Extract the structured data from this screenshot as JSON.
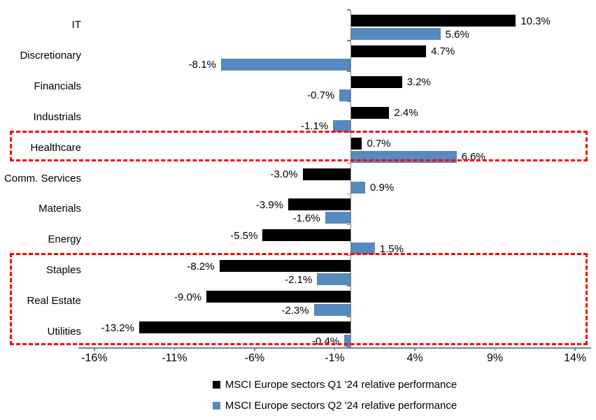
{
  "chart_data": {
    "type": "bar",
    "orientation": "horizontal",
    "title": "",
    "categories": [
      "IT",
      "Discretionary",
      "Financials",
      "Industrials",
      "Healthcare",
      "Comm. Services",
      "Materials",
      "Energy",
      "Staples",
      "Real Estate",
      "Utilities"
    ],
    "series": [
      {
        "name": "MSCI Europe sectors Q1 '24 relative performance",
        "color": "#000000",
        "values": [
          10.3,
          4.7,
          3.2,
          2.4,
          0.7,
          -3.0,
          -3.9,
          -5.5,
          -8.2,
          -9.0,
          -13.2
        ],
        "labels": [
          "10.3%",
          "4.7%",
          "3.2%",
          "2.4%",
          "0.7%",
          "-3.0%",
          "-3.9%",
          "-5.5%",
          "-8.2%",
          "-9.0%",
          "-13.2%"
        ]
      },
      {
        "name": "MSCI Europe sectors Q2 '24 relative performance",
        "color": "#5689be",
        "values": [
          5.6,
          -8.1,
          -0.7,
          -1.1,
          6.6,
          0.9,
          -1.6,
          1.5,
          -2.1,
          -2.3,
          -0.4
        ],
        "labels": [
          "5.6%",
          "-8.1%",
          "-0.7%",
          "-1.1%",
          "6.6%",
          "0.9%",
          "-1.6%",
          "1.5%",
          "-2.1%",
          "-2.3%",
          "-0.4%"
        ]
      }
    ],
    "x_axis": {
      "range": [
        -17,
        15
      ],
      "ticks": [
        {
          "value": -16,
          "label": "-16%"
        },
        {
          "value": -11,
          "label": "-11%"
        },
        {
          "value": -6,
          "label": "-6%"
        },
        {
          "value": -1,
          "label": "-1%"
        },
        {
          "value": 4,
          "label": "4%"
        },
        {
          "value": 9,
          "label": "9%"
        },
        {
          "value": 14,
          "label": "14%"
        }
      ],
      "color": "#808080"
    },
    "grid": false,
    "legend_position": "bottom",
    "highlights": [
      {
        "categories": [
          "Healthcare"
        ],
        "style": "dashed",
        "color": "#fa0000"
      },
      {
        "categories": [
          "Staples",
          "Real Estate",
          "Utilities"
        ],
        "style": "dashed",
        "color": "#fa0000"
      }
    ]
  }
}
